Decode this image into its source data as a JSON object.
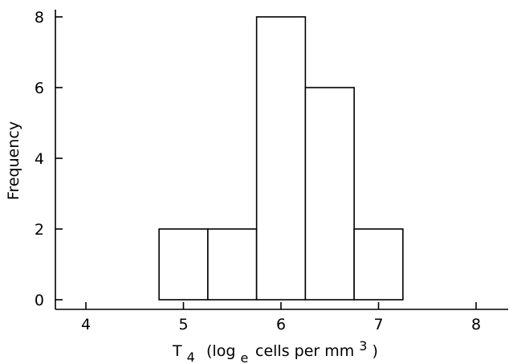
{
  "chart_data": {
    "type": "bar",
    "title": "",
    "xlabel": {
      "main": "T",
      "sub": "4",
      "paren_open": "(log",
      "log_sub": "e",
      "rest": "cells per mm",
      "sup": "3",
      "paren_close": ")"
    },
    "ylabel": "Frequency",
    "xlim": [
      3.65,
      8.35
    ],
    "ylim": [
      0,
      8.3
    ],
    "x_ticks": [
      4,
      5,
      6,
      7,
      8
    ],
    "y_ticks": [
      0,
      2,
      4,
      6,
      8
    ],
    "bins": [
      {
        "start": 4.75,
        "end": 5.25,
        "count": 2
      },
      {
        "start": 5.25,
        "end": 5.75,
        "count": 2
      },
      {
        "start": 5.75,
        "end": 6.25,
        "count": 8
      },
      {
        "start": 6.25,
        "end": 6.75,
        "count": 6
      },
      {
        "start": 6.75,
        "end": 7.25,
        "count": 2
      }
    ],
    "grid": false,
    "legend": "none"
  }
}
